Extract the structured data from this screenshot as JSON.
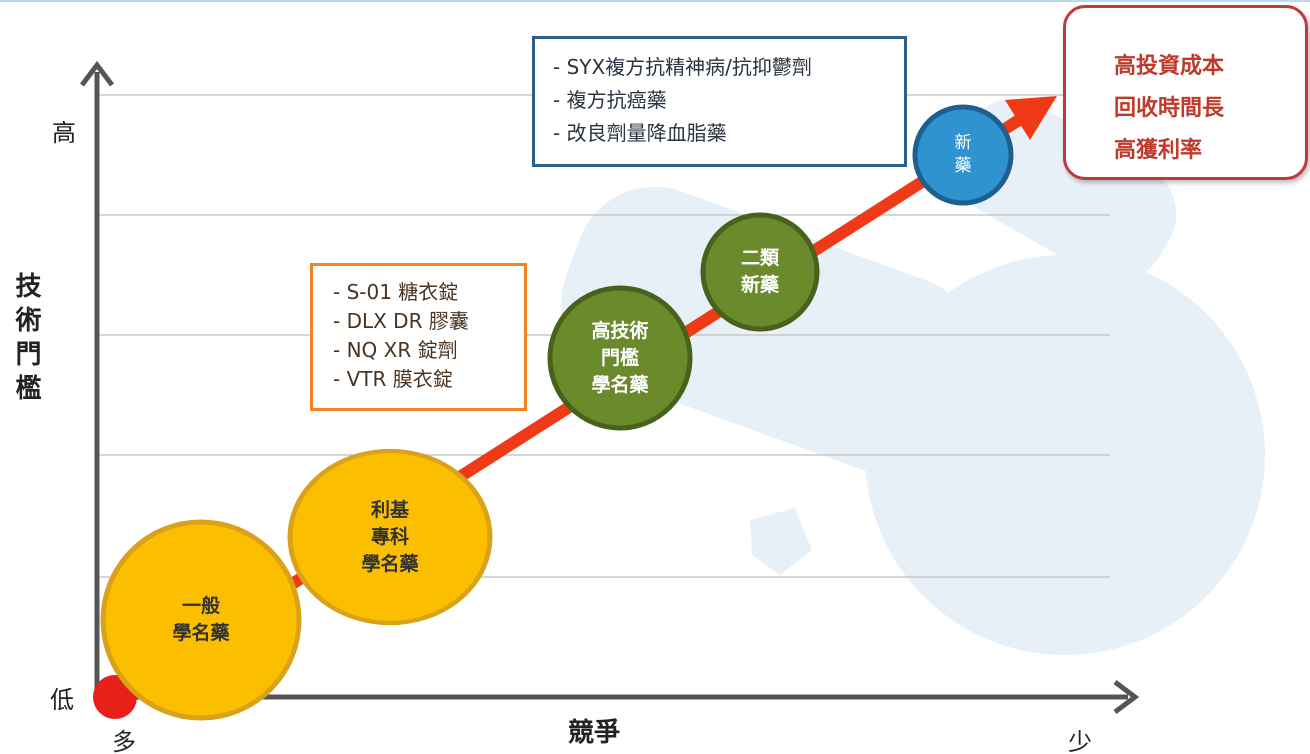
{
  "axes": {
    "y_high": "高",
    "y_low": "低",
    "y_title": "技術門檻",
    "x_title": "競爭",
    "x_left": "多",
    "x_right": "少"
  },
  "stages": [
    {
      "lines": [
        "一般",
        "學名藥"
      ]
    },
    {
      "lines": [
        "利基",
        "專科",
        "學名藥"
      ]
    },
    {
      "lines": [
        "高技術",
        "門檻",
        "學名藥"
      ]
    },
    {
      "lines": [
        "二類",
        "新藥"
      ]
    },
    {
      "lines": [
        "新",
        "藥"
      ]
    }
  ],
  "boxes": [
    {
      "items": [
        "- S-01 糖衣錠",
        "- DLX DR 膠囊",
        "- NQ XR 錠劑",
        "- VTR 膜衣錠"
      ]
    },
    {
      "items": [
        "- SYX複方抗精神病/抗抑鬱劑",
        "- 複方抗癌藥",
        "- 改良劑量降血脂藥"
      ]
    },
    {
      "items": [
        "高投資成本",
        "回收時間長",
        "高獲利率"
      ]
    }
  ]
}
